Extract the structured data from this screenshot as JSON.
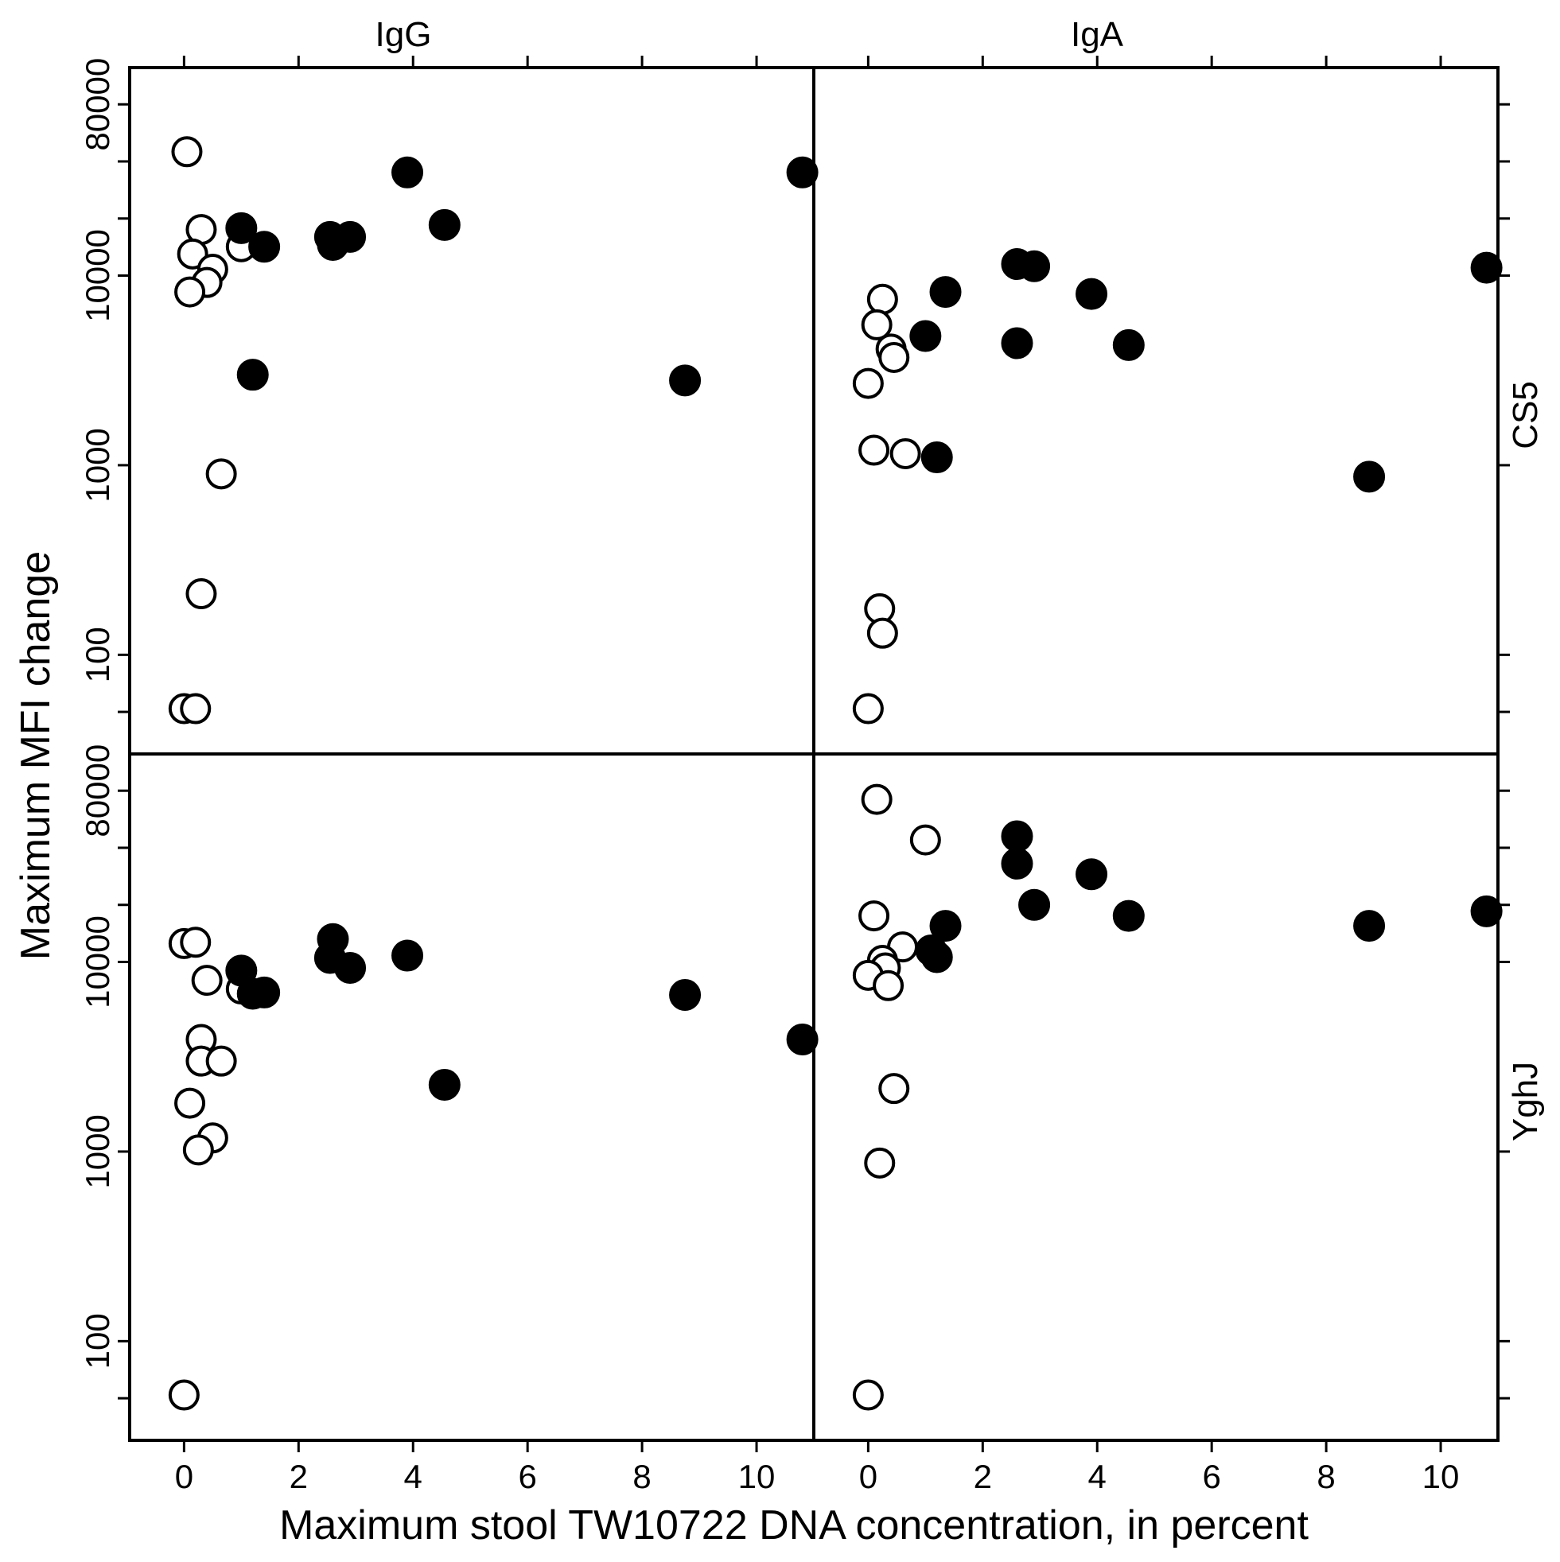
{
  "chart_data": {
    "type": "scatter",
    "layout": "facet-grid-2x2",
    "xlabel": "Maximum stool TW10722 DNA concentration, in percent",
    "ylabel": "Maximum MFI change",
    "column_labels": [
      "IgG",
      "IgA"
    ],
    "row_labels": [
      "CS5",
      "YghJ"
    ],
    "x_ticks": [
      0,
      2,
      4,
      6,
      8,
      10
    ],
    "y_tick_labels": [
      100,
      1000,
      10000,
      80000
    ],
    "y_ticks_all": [
      50,
      100,
      1000,
      10000,
      20000,
      40000,
      80000
    ],
    "y_scale": "log",
    "xlim": [
      -0.95,
      11.0
    ],
    "ylim": [
      30,
      125000
    ],
    "marker_styles": {
      "open": "hollow circle",
      "filled": "solid black circle"
    },
    "panels": [
      {
        "row": "CS5",
        "column": "IgG",
        "points": [
          {
            "x": 0.05,
            "y": 45000,
            "style": "open"
          },
          {
            "x": 0.3,
            "y": 17500,
            "style": "open"
          },
          {
            "x": 0.15,
            "y": 13000,
            "style": "open"
          },
          {
            "x": 0.5,
            "y": 10800,
            "style": "open"
          },
          {
            "x": 0.4,
            "y": 9200,
            "style": "open"
          },
          {
            "x": 0.1,
            "y": 8200,
            "style": "open"
          },
          {
            "x": 1.0,
            "y": 14200,
            "style": "open"
          },
          {
            "x": 0.65,
            "y": 900,
            "style": "open"
          },
          {
            "x": 0.3,
            "y": 210,
            "style": "open"
          },
          {
            "x": 0.0,
            "y": 52,
            "style": "open"
          },
          {
            "x": 0.2,
            "y": 52,
            "style": "open"
          },
          {
            "x": 1.0,
            "y": 17800,
            "style": "filled"
          },
          {
            "x": 1.4,
            "y": 14200,
            "style": "filled"
          },
          {
            "x": 2.55,
            "y": 16000,
            "style": "filled"
          },
          {
            "x": 2.6,
            "y": 14500,
            "style": "filled"
          },
          {
            "x": 2.9,
            "y": 16000,
            "style": "filled"
          },
          {
            "x": 3.9,
            "y": 35000,
            "style": "filled"
          },
          {
            "x": 4.55,
            "y": 18500,
            "style": "filled"
          },
          {
            "x": 10.8,
            "y": 35000,
            "style": "filled"
          },
          {
            "x": 1.2,
            "y": 3000,
            "style": "filled"
          },
          {
            "x": 8.75,
            "y": 2800,
            "style": "filled"
          }
        ]
      },
      {
        "row": "CS5",
        "column": "IgA",
        "points": [
          {
            "x": 0.25,
            "y": 7500,
            "style": "open"
          },
          {
            "x": 0.15,
            "y": 5500,
            "style": "open"
          },
          {
            "x": 0.4,
            "y": 4100,
            "style": "open"
          },
          {
            "x": 0.45,
            "y": 3700,
            "style": "open"
          },
          {
            "x": 0.0,
            "y": 2700,
            "style": "open"
          },
          {
            "x": 0.1,
            "y": 1200,
            "style": "open"
          },
          {
            "x": 0.65,
            "y": 1150,
            "style": "open"
          },
          {
            "x": 0.2,
            "y": 175,
            "style": "open"
          },
          {
            "x": 0.25,
            "y": 130,
            "style": "open"
          },
          {
            "x": 0.0,
            "y": 52,
            "style": "open"
          },
          {
            "x": 1.0,
            "y": 4800,
            "style": "open"
          },
          {
            "x": 1.0,
            "y": 4800,
            "style": "filled"
          },
          {
            "x": 1.35,
            "y": 8200,
            "style": "filled"
          },
          {
            "x": 2.6,
            "y": 11500,
            "style": "filled"
          },
          {
            "x": 2.9,
            "y": 11200,
            "style": "filled"
          },
          {
            "x": 3.9,
            "y": 8000,
            "style": "filled"
          },
          {
            "x": 2.6,
            "y": 4400,
            "style": "filled"
          },
          {
            "x": 4.55,
            "y": 4300,
            "style": "filled"
          },
          {
            "x": 10.8,
            "y": 11000,
            "style": "filled"
          },
          {
            "x": 1.2,
            "y": 1100,
            "style": "filled"
          },
          {
            "x": 8.75,
            "y": 870,
            "style": "filled"
          }
        ]
      },
      {
        "row": "YghJ",
        "column": "IgG",
        "points": [
          {
            "x": 0.0,
            "y": 12500,
            "style": "open"
          },
          {
            "x": 0.2,
            "y": 12700,
            "style": "open"
          },
          {
            "x": 0.4,
            "y": 8000,
            "style": "open"
          },
          {
            "x": 0.3,
            "y": 3900,
            "style": "open"
          },
          {
            "x": 0.3,
            "y": 3000,
            "style": "open"
          },
          {
            "x": 0.65,
            "y": 3000,
            "style": "open"
          },
          {
            "x": 0.1,
            "y": 1800,
            "style": "open"
          },
          {
            "x": 0.5,
            "y": 1180,
            "style": "open"
          },
          {
            "x": 0.25,
            "y": 1020,
            "style": "open"
          },
          {
            "x": 0.0,
            "y": 52,
            "style": "open"
          },
          {
            "x": 1.0,
            "y": 7200,
            "style": "open"
          },
          {
            "x": 1.0,
            "y": 9000,
            "style": "filled"
          },
          {
            "x": 1.2,
            "y": 6800,
            "style": "filled"
          },
          {
            "x": 1.4,
            "y": 6900,
            "style": "filled"
          },
          {
            "x": 2.6,
            "y": 13200,
            "style": "filled"
          },
          {
            "x": 2.55,
            "y": 10500,
            "style": "filled"
          },
          {
            "x": 2.9,
            "y": 9300,
            "style": "filled"
          },
          {
            "x": 3.9,
            "y": 10800,
            "style": "filled"
          },
          {
            "x": 4.55,
            "y": 2250,
            "style": "filled"
          },
          {
            "x": 8.75,
            "y": 6700,
            "style": "filled"
          },
          {
            "x": 10.8,
            "y": 3900,
            "style": "filled"
          }
        ]
      },
      {
        "row": "YghJ",
        "column": "IgA",
        "points": [
          {
            "x": 0.15,
            "y": 72000,
            "style": "open"
          },
          {
            "x": 1.0,
            "y": 44000,
            "style": "open"
          },
          {
            "x": 0.1,
            "y": 17500,
            "style": "open"
          },
          {
            "x": 0.6,
            "y": 12000,
            "style": "open"
          },
          {
            "x": 0.25,
            "y": 10200,
            "style": "open"
          },
          {
            "x": 0.3,
            "y": 9300,
            "style": "open"
          },
          {
            "x": 0.0,
            "y": 8500,
            "style": "open"
          },
          {
            "x": 0.35,
            "y": 7500,
            "style": "open"
          },
          {
            "x": 0.45,
            "y": 2150,
            "style": "open"
          },
          {
            "x": 0.2,
            "y": 870,
            "style": "open"
          },
          {
            "x": 0.0,
            "y": 52,
            "style": "open"
          },
          {
            "x": 1.1,
            "y": 11500,
            "style": "filled"
          },
          {
            "x": 1.2,
            "y": 10600,
            "style": "filled"
          },
          {
            "x": 1.35,
            "y": 15500,
            "style": "filled"
          },
          {
            "x": 2.6,
            "y": 46000,
            "style": "filled"
          },
          {
            "x": 2.6,
            "y": 33000,
            "style": "filled"
          },
          {
            "x": 2.9,
            "y": 20000,
            "style": "filled"
          },
          {
            "x": 3.9,
            "y": 29000,
            "style": "filled"
          },
          {
            "x": 4.55,
            "y": 17500,
            "style": "filled"
          },
          {
            "x": 8.75,
            "y": 15500,
            "style": "filled"
          },
          {
            "x": 10.8,
            "y": 18500,
            "style": "filled"
          }
        ]
      }
    ]
  }
}
